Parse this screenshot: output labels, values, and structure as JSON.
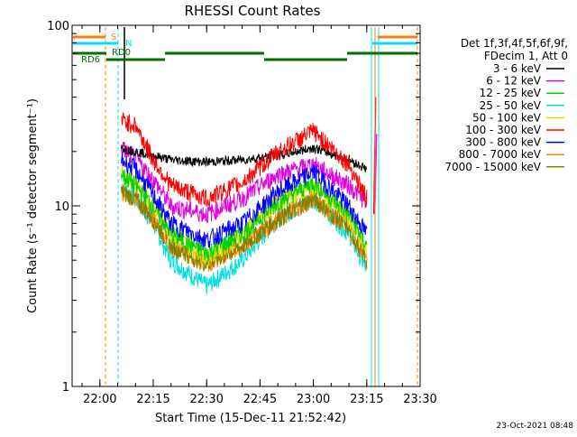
{
  "chart_data": {
    "type": "line",
    "title": "RHESSI Count Rates",
    "xlabel": "Start Time (15-Dec-11 21:52:42)",
    "ylabel": "Count Rate (s⁻¹ detector segment⁻¹)",
    "yscale": "log",
    "ylim": [
      1,
      100
    ],
    "xlim_minutes": [
      21.87,
      23.5
    ],
    "x_tick_labels": [
      "22:00",
      "22:15",
      "22:30",
      "22:45",
      "23:00",
      "23:15",
      "23:30"
    ],
    "y_tick_labels": [
      "1",
      "10",
      "100"
    ],
    "legend_header": [
      "Det 1f,3f,4f,5f,6f,9f,",
      "FDecim 1, Att 0"
    ],
    "series": [
      {
        "name": "3 - 6 keV",
        "color": "#000000",
        "x": [
          "22:06",
          "22:10",
          "22:15",
          "22:20",
          "22:30",
          "22:40",
          "22:50",
          "23:00",
          "23:10",
          "23:15"
        ],
        "values": [
          21,
          20,
          19,
          18,
          17.5,
          18,
          19,
          21,
          18,
          16
        ]
      },
      {
        "name": "6 - 12 keV",
        "color": "#e000e0",
        "x": [
          "22:06",
          "22:10",
          "22:15",
          "22:20",
          "22:30",
          "22:40",
          "22:50",
          "23:00",
          "23:10",
          "23:15"
        ],
        "values": [
          21,
          18.5,
          14,
          10,
          9,
          11,
          15,
          17,
          13,
          10.5
        ]
      },
      {
        "name": "12 - 25 keV",
        "color": "#00d000",
        "x": [
          "22:06",
          "22:10",
          "22:15",
          "22:20",
          "22:30",
          "22:40",
          "22:50",
          "23:00",
          "23:10",
          "23:15"
        ],
        "values": [
          15,
          13,
          10,
          7,
          5.5,
          7,
          10.5,
          13.5,
          9,
          6
        ]
      },
      {
        "name": "25 - 50 keV",
        "color": "#00e0e0",
        "x": [
          "22:06",
          "22:10",
          "22:15",
          "22:20",
          "22:30",
          "22:40",
          "22:50",
          "23:00",
          "23:10",
          "23:15"
        ],
        "values": [
          13,
          11,
          8,
          5,
          3.6,
          5,
          8.5,
          11,
          7,
          4.4
        ]
      },
      {
        "name": "50 - 100 keV",
        "color": "#e0e000",
        "x": [
          "22:06",
          "22:10",
          "22:15",
          "22:20",
          "22:30",
          "22:40",
          "22:50",
          "23:00",
          "23:10",
          "23:15"
        ],
        "values": [
          15,
          13.5,
          10,
          7,
          5.2,
          7,
          10.5,
          13,
          8.5,
          5.5
        ]
      },
      {
        "name": "100 - 300 keV",
        "color": "#ff0000",
        "x": [
          "22:06",
          "22:10",
          "22:15",
          "22:20",
          "22:30",
          "22:40",
          "22:50",
          "23:00",
          "23:10",
          "23:15"
        ],
        "values": [
          30,
          28,
          18,
          13,
          11,
          13.5,
          20,
          26,
          17,
          11
        ]
      },
      {
        "name": "300 - 800 keV",
        "color": "#0000ff",
        "x": [
          "22:06",
          "22:10",
          "22:15",
          "22:20",
          "22:30",
          "22:40",
          "22:50",
          "23:00",
          "23:10",
          "23:15"
        ],
        "values": [
          18,
          16,
          11.5,
          8,
          6.5,
          8,
          12,
          15.5,
          10,
          7
        ]
      },
      {
        "name": "800 - 7000 keV",
        "color": "#ff8800",
        "x": [
          "22:06",
          "22:10",
          "22:15",
          "22:20",
          "22:30",
          "22:40",
          "22:50",
          "23:00",
          "23:10",
          "23:15"
        ],
        "values": [
          12,
          11,
          8.5,
          6,
          4.8,
          6,
          8.5,
          11,
          7.5,
          5
        ]
      },
      {
        "name": "7000 - 15000 keV",
        "color": "#808000",
        "x": [
          "22:06",
          "22:10",
          "22:15",
          "22:20",
          "22:30",
          "22:40",
          "22:50",
          "23:00",
          "23:10",
          "23:15"
        ],
        "values": [
          12,
          11,
          8.5,
          6,
          4.8,
          6,
          8.5,
          11,
          7.5,
          5
        ]
      }
    ],
    "flag_labels": {
      "saa": "S",
      "rd0": "RD0",
      "rd6": "RD6",
      "n": "N"
    },
    "timestamp": "23-Oct-2021 08:48"
  },
  "colors": {
    "axis": "#000000",
    "flag_orange": "#ff8000",
    "flag_cyan": "#00e0ff",
    "flag_green": "#007000"
  }
}
